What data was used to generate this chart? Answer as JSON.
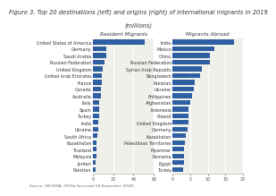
{
  "title_line1": "Figure 3. Top 20 destinations (left) and origins (right) of international migrants in 2019",
  "title_line2": "(millions)",
  "source": "Source: UN DESA, 2019a (accessed 18 September 2019).",
  "left_header": "Resident Migrants",
  "right_header": "Migrants Abroad",
  "left_countries": [
    "United States of America",
    "Germany",
    "Saudi Arabia",
    "Russian Federation",
    "United Kingdom",
    "United Arab Emirates",
    "France",
    "Canada",
    "Australia",
    "Italy",
    "Spain",
    "Turkey",
    "India",
    "Ukraine",
    "South Africa",
    "Kazakhstan",
    "Thailand",
    "Malaysia",
    "Jordan",
    "Pakistan"
  ],
  "left_values": [
    50.7,
    13.1,
    13.1,
    11.6,
    9.6,
    8.6,
    8.5,
    8.0,
    7.7,
    6.3,
    6.1,
    5.9,
    5.2,
    5.0,
    4.2,
    3.6,
    3.3,
    3.3,
    3.2,
    3.2
  ],
  "right_countries": [
    "India",
    "Mexico",
    "China",
    "Russian Federation",
    "Syrian Arab Republic",
    "Bangladesh",
    "Pakistan",
    "Ukraine",
    "Philippines",
    "Afghanistan",
    "Indonesia",
    "Poland",
    "United Kingdom",
    "Germany",
    "Kazakhstan",
    "Palestinian Territories",
    "Myanmar",
    "Romania",
    "Egypt",
    "Turkey"
  ],
  "right_values": [
    17.5,
    11.8,
    10.7,
    10.5,
    8.2,
    7.8,
    6.3,
    5.9,
    5.4,
    5.1,
    4.5,
    4.4,
    4.4,
    4.2,
    3.6,
    3.5,
    3.3,
    3.2,
    3.1,
    3.0
  ],
  "bar_color": "#2e5fa3",
  "left_xlim": [
    0,
    60
  ],
  "right_xlim": [
    0,
    20
  ],
  "left_xticks": [
    0,
    20,
    40,
    60
  ],
  "right_xticks": [
    0,
    5,
    10,
    15,
    20
  ],
  "bg_color": "#ffffff",
  "plot_bg": "#f0f0ea",
  "header_bg": "#dcdcd4",
  "title_fontsize": 4.8,
  "label_fontsize": 3.5,
  "tick_fontsize": 3.5,
  "header_fontsize": 4.2,
  "source_fontsize": 3.0
}
